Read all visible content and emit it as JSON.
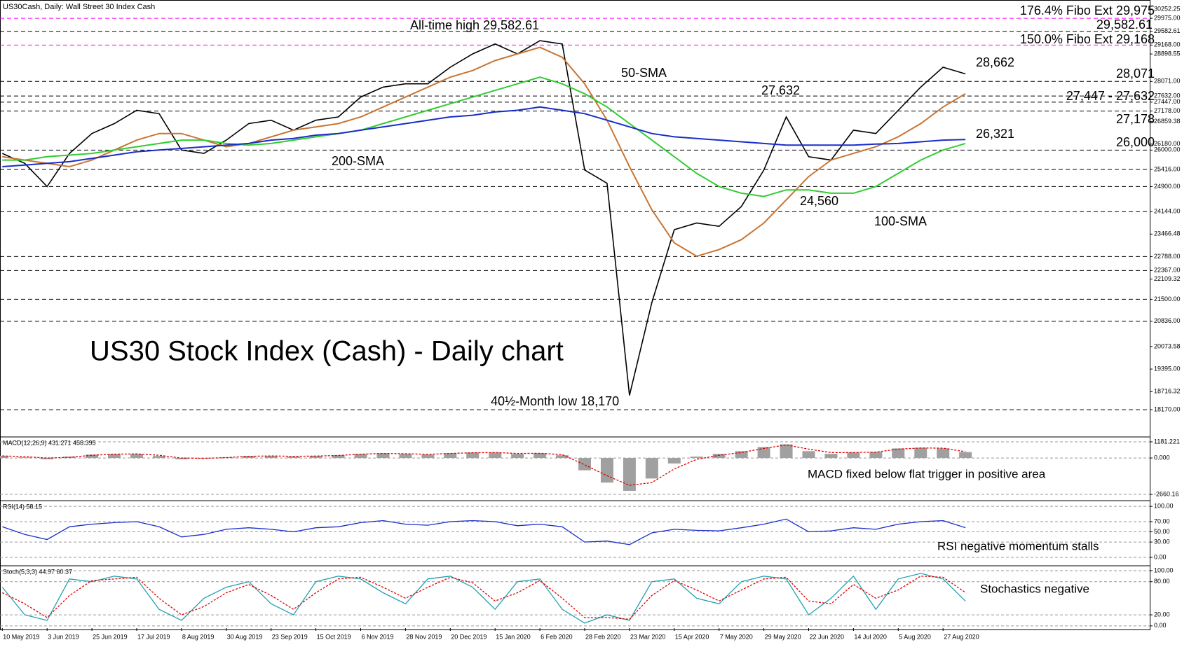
{
  "chart_data": [
    {
      "type": "line",
      "header": "US30Cash, Daily:  Wall Street 30 Index Cash",
      "title": "US30 Stock Index (Cash) - Daily chart",
      "categories": [
        "10 May 2019",
        null,
        "3 Jun 2019",
        null,
        "25 Jun 2019",
        null,
        "17 Jul 2019",
        null,
        "8 Aug 2019",
        null,
        "30 Aug 2019",
        null,
        "23 Sep 2019",
        null,
        "15 Oct 2019",
        null,
        "6 Nov 2019",
        null,
        "28 Nov 2019",
        null,
        "20 Dec 2019",
        null,
        "15 Jan 2020",
        null,
        "6 Feb 2020",
        null,
        "28 Feb 2020",
        null,
        "23 Mar 2020",
        null,
        "15 Apr 2020",
        null,
        "7 May 2020",
        null,
        "29 May 2020",
        null,
        "22 Jun 2020",
        null,
        "14 Jul 2020",
        null,
        "5 Aug 2020",
        null,
        "27 Aug 2020",
        null
      ],
      "ylim": [
        17390,
        30390
      ],
      "yticks": [
        {
          "value": 30252.25,
          "label": "30252.25"
        },
        {
          "value": 29975,
          "label": "29975.00"
        },
        {
          "value": 29582.61,
          "label": "29582.61"
        },
        {
          "value": 29168,
          "label": "29168.00"
        },
        {
          "value": 28898.55,
          "label": "28898.55"
        },
        {
          "value": 28071,
          "label": "28071.00"
        },
        {
          "value": 27632,
          "label": "27632.00"
        },
        {
          "value": 27447,
          "label": "27447.00"
        },
        {
          "value": 27178,
          "label": "27178.00"
        },
        {
          "value": 26859.38,
          "label": "26859.38"
        },
        {
          "value": 26180,
          "label": "26180.00"
        },
        {
          "value": 26000,
          "label": "26000.00"
        },
        {
          "value": 25416,
          "label": "25416.00"
        },
        {
          "value": 24900,
          "label": "24900.00"
        },
        {
          "value": 24144,
          "label": "24144.00"
        },
        {
          "value": 23466.48,
          "label": "23466.48"
        },
        {
          "value": 22788,
          "label": "22788.00"
        },
        {
          "value": 22367,
          "label": "22367.00"
        },
        {
          "value": 22109.32,
          "label": "22109.32"
        },
        {
          "value": 21500,
          "label": "21500.00"
        },
        {
          "value": 20836,
          "label": "20836.00"
        },
        {
          "value": 20073.58,
          "label": "20073.58"
        },
        {
          "value": 19395,
          "label": "19395.00"
        },
        {
          "value": 18716.32,
          "label": "18716.32"
        },
        {
          "value": 18170,
          "label": "18170.00"
        }
      ],
      "levels": [
        {
          "value": 29975,
          "color": "#ff00ff"
        },
        {
          "value": 29582.61,
          "color": "#000000"
        },
        {
          "value": 29168,
          "color": "#ff00ff"
        },
        {
          "value": 28071,
          "color": "#000000"
        },
        {
          "value": 27632,
          "color": "#000000"
        },
        {
          "value": 27447,
          "color": "#000000"
        },
        {
          "value": 27178,
          "color": "#000000"
        },
        {
          "value": 26000,
          "color": "#000000"
        },
        {
          "value": 25416,
          "color": "#000000"
        },
        {
          "value": 24900,
          "color": "#000000"
        },
        {
          "value": 24144,
          "color": "#000000"
        },
        {
          "value": 22788,
          "color": "#000000"
        },
        {
          "value": 22367,
          "color": "#000000"
        },
        {
          "value": 21500,
          "color": "#000000"
        },
        {
          "value": 20836,
          "color": "#000000"
        },
        {
          "value": 18170,
          "color": "#000000"
        }
      ],
      "series": [
        {
          "color": "#000000",
          "values": [
            25900,
            25600,
            24900,
            25900,
            26500,
            26800,
            27200,
            27100,
            26000,
            25900,
            26300,
            26800,
            26900,
            26600,
            26900,
            27000,
            27600,
            27900,
            28000,
            28000,
            28500,
            28900,
            29200,
            28900,
            29300,
            29200,
            25400,
            25000,
            18600,
            21400,
            23600,
            23800,
            23700,
            24300,
            25400,
            27000,
            25800,
            25700,
            26600,
            26500,
            27200,
            27900,
            28500,
            28300
          ]
        },
        {
          "name": "50-SMA",
          "color": "#c87533",
          "values": [
            25800,
            25700,
            25600,
            25500,
            25700,
            26000,
            26300,
            26500,
            26500,
            26300,
            26100,
            26200,
            26400,
            26600,
            26700,
            26800,
            27000,
            27300,
            27600,
            27900,
            28200,
            28400,
            28700,
            28900,
            29100,
            28800,
            28000,
            26900,
            25500,
            24200,
            23200,
            22800,
            23000,
            23300,
            23800,
            24500,
            25200,
            25700,
            25900,
            26100,
            26400,
            26800,
            27300,
            27700
          ]
        },
        {
          "name": "100-SMA",
          "color": "#33cc33",
          "values": [
            25700,
            25700,
            25800,
            25850,
            25900,
            26000,
            26100,
            26200,
            26300,
            26300,
            26200,
            26150,
            26200,
            26300,
            26400,
            26500,
            26600,
            26800,
            27000,
            27200,
            27400,
            27600,
            27800,
            28000,
            28200,
            28000,
            27700,
            27300,
            26800,
            26300,
            25800,
            25300,
            24900,
            24700,
            24600,
            24800,
            24800,
            24700,
            24700,
            24900,
            25300,
            25700,
            26000,
            26200
          ]
        },
        {
          "name": "200-SMA",
          "color": "#1a2ec8",
          "values": [
            25500,
            25550,
            25600,
            25650,
            25750,
            25850,
            25950,
            26000,
            26050,
            26100,
            26150,
            26200,
            26300,
            26350,
            26450,
            26500,
            26600,
            26700,
            26800,
            26900,
            27000,
            27050,
            27150,
            27200,
            27300,
            27200,
            27100,
            26900,
            26700,
            26500,
            26400,
            26350,
            26300,
            26250,
            26200,
            26150,
            26150,
            26150,
            26150,
            26180,
            26200,
            26250,
            26300,
            26321
          ]
        }
      ],
      "annotations": [
        {
          "text": "176.4% Fibo Ext 29,975",
          "color": "#ff00ff"
        },
        {
          "text": "29,582.61",
          "color": "#1a2ec8"
        },
        {
          "text": "150.0% Fibo Ext 29,168",
          "color": "#ff00ff"
        },
        {
          "text": "All-time high 29,582.61",
          "color": "#000000"
        },
        {
          "text": "28,662",
          "color": "#e00000"
        },
        {
          "text": "28,071",
          "color": "#e00000"
        },
        {
          "text": "27,447 - 27,632",
          "color": "#e00000"
        },
        {
          "text": "27,178",
          "color": "#e00000"
        },
        {
          "text": "26,321",
          "color": "#1a2ec8"
        },
        {
          "text": "26,000",
          "color": "#e00000"
        },
        {
          "text": "27,632",
          "color": "#000000"
        },
        {
          "text": "24,560",
          "color": "#000000"
        },
        {
          "text": "40½-Month low 18,170",
          "color": "#000000"
        }
      ]
    },
    {
      "type": "bar",
      "header": "MACD(12,26,9) 431.271 458.395",
      "note": "MACD fixed below flat trigger in positive area",
      "ylim": [
        -2967,
        1386
      ],
      "yticks": [
        {
          "value": 1181.221,
          "label": "1181.221"
        },
        {
          "value": 0,
          "label": "0.000"
        },
        {
          "value": -2660.16,
          "label": "-2660.16"
        }
      ],
      "series": [
        {
          "type": "bar",
          "color": "#a0a0a0",
          "values": [
            150,
            50,
            -100,
            100,
            250,
            300,
            300,
            150,
            -100,
            -50,
            50,
            150,
            150,
            100,
            150,
            200,
            300,
            350,
            300,
            250,
            350,
            400,
            400,
            300,
            350,
            200,
            -900,
            -1800,
            -2400,
            -1500,
            -400,
            100,
            300,
            500,
            800,
            1000,
            500,
            300,
            400,
            450,
            700,
            750,
            700,
            431.271
          ]
        },
        {
          "type": "line",
          "color": "#e00000",
          "values": [
            150,
            100,
            0,
            50,
            200,
            280,
            300,
            200,
            0,
            -30,
            30,
            120,
            150,
            120,
            140,
            180,
            280,
            330,
            310,
            270,
            330,
            380,
            400,
            330,
            340,
            250,
            -500,
            -1300,
            -2000,
            -1800,
            -800,
            -100,
            200,
            400,
            700,
            950,
            650,
            400,
            400,
            430,
            650,
            730,
            720,
            458.395
          ]
        }
      ]
    },
    {
      "type": "line",
      "header": "RSI(14) 58.15",
      "note": "RSI negative momentum stalls",
      "ylim": [
        -11,
        107
      ],
      "yticks": [
        {
          "value": 100,
          "label": "100.00"
        },
        {
          "value": 70,
          "label": "70.00"
        },
        {
          "value": 50,
          "label": "50.00"
        },
        {
          "value": 30,
          "label": "30.00"
        },
        {
          "value": 0,
          "label": "0.00"
        }
      ],
      "series": [
        {
          "color": "#1a2ec8",
          "values": [
            60,
            45,
            35,
            60,
            65,
            68,
            70,
            60,
            40,
            45,
            55,
            58,
            55,
            50,
            58,
            60,
            68,
            72,
            65,
            63,
            70,
            72,
            70,
            62,
            65,
            60,
            30,
            32,
            25,
            48,
            55,
            53,
            52,
            58,
            65,
            75,
            50,
            52,
            58,
            55,
            65,
            70,
            72,
            58.15
          ]
        }
      ]
    },
    {
      "type": "line",
      "header": "Stoch(5,3,3) 44.97 60.37",
      "note": "Stochastics negative",
      "ylim": [
        -4,
        105
      ],
      "yticks": [
        {
          "value": 100,
          "label": "100.00"
        },
        {
          "value": 80,
          "label": "80.00"
        },
        {
          "value": 20,
          "label": "20.00"
        },
        {
          "value": 0,
          "label": "0.00"
        }
      ],
      "series": [
        {
          "color": "#20a0b0",
          "values": [
            70,
            20,
            10,
            85,
            80,
            90,
            85,
            30,
            10,
            50,
            70,
            80,
            40,
            20,
            80,
            90,
            85,
            60,
            40,
            85,
            90,
            70,
            30,
            80,
            85,
            30,
            5,
            20,
            10,
            80,
            85,
            50,
            40,
            80,
            90,
            85,
            20,
            50,
            90,
            30,
            85,
            95,
            85,
            44.97
          ]
        },
        {
          "color": "#e00000",
          "dashed": true,
          "values": [
            60,
            40,
            15,
            55,
            82,
            85,
            88,
            50,
            20,
            35,
            60,
            75,
            55,
            30,
            60,
            85,
            88,
            70,
            50,
            70,
            88,
            78,
            45,
            60,
            82,
            50,
            15,
            15,
            12,
            55,
            82,
            65,
            45,
            65,
            85,
            88,
            45,
            40,
            75,
            50,
            65,
            90,
            88,
            60.37
          ]
        }
      ]
    }
  ]
}
